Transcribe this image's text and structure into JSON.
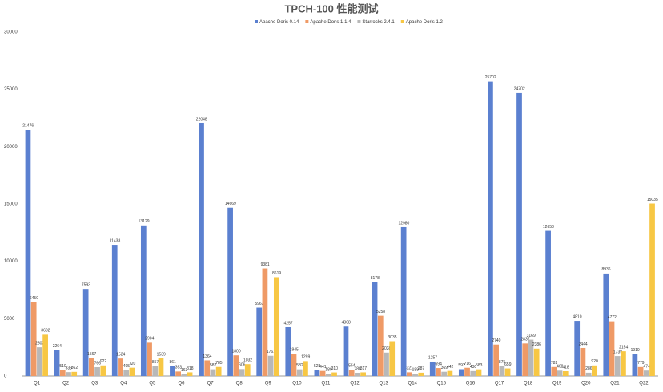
{
  "chart_data": {
    "type": "bar",
    "title": "TPCH-100 性能测试",
    "categories": [
      "Q1",
      "Q2",
      "Q3",
      "Q4",
      "Q5",
      "Q6",
      "Q7",
      "Q8",
      "Q9",
      "Q10",
      "Q11",
      "Q12",
      "Q13",
      "Q14",
      "Q15",
      "Q16",
      "Q17",
      "Q18",
      "Q19",
      "Q20",
      "Q21",
      "Q22"
    ],
    "series": [
      {
        "name": "Apache Doris 0.14",
        "color": "#5b80d0",
        "values": [
          21476,
          2264,
          7593,
          11438,
          13129,
          861,
          22048,
          14669,
          5963,
          4257,
          528,
          4308,
          8178,
          12980,
          1257,
          592,
          25702,
          24702,
          12658,
          4810,
          8936,
          1910
        ]
      },
      {
        "name": "Apache Doris 1.1.4",
        "color": "#ef9a66",
        "values": [
          6450,
          510,
          1567,
          1524,
          2904,
          393,
          1364,
          1800,
          9381,
          1945,
          441,
          554,
          5258,
          321,
          694,
          716,
          2740,
          2837,
          782,
          2444,
          4772,
          779
        ]
      },
      {
        "name": "Starrocks 2.4.1",
        "color": "#b8b8b8",
        "values": [
          2502,
          339,
          766,
          495,
          857,
          163,
          587,
          606,
          1761,
          582,
          189,
          280,
          2038,
          188,
          369,
          430,
          875,
          3169,
          468,
          286,
          1739,
          474
        ]
      },
      {
        "name": "Apache Doris 1.2",
        "color": "#f7c744",
        "values": [
          3602,
          362,
          922,
          720,
          1539,
          318,
          785,
          1032,
          8619,
          1299,
          310,
          317,
          3035,
          287,
          442,
          583,
          659,
          2386,
          418,
          920,
          2154,
          15035
        ]
      }
    ],
    "ylim": [
      0,
      30000
    ],
    "yticks": [
      0,
      5000,
      10000,
      15000,
      20000,
      25000,
      30000
    ],
    "grid": false,
    "legend": "top"
  }
}
